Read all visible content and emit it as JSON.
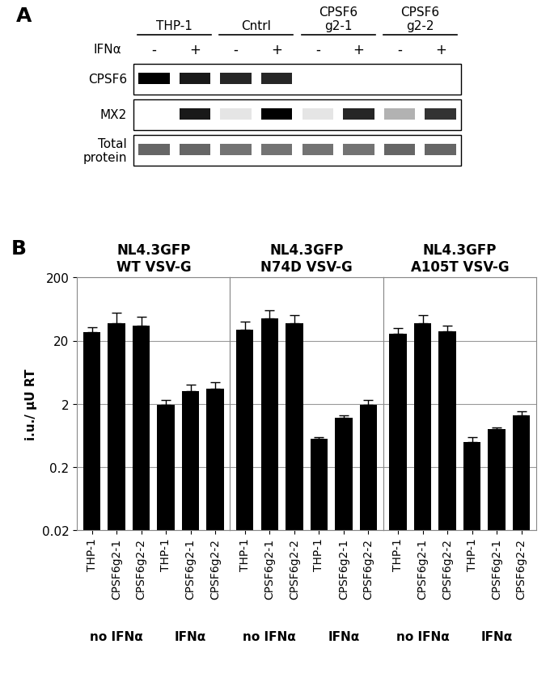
{
  "panel_labels": [
    "A",
    "B"
  ],
  "blot": {
    "treatment_label": "IFNα",
    "lane_groups": [
      "THP-1",
      "Cntrl",
      "CPSF6\ng2-1",
      "CPSF6\ng2-2"
    ],
    "lane_signs": [
      "-",
      "+",
      "-",
      "+",
      "-",
      "+",
      "-",
      "+"
    ],
    "rows": [
      {
        "label": "CPSF6",
        "signal": [
          1.0,
          0.9,
          0.85,
          0.85,
          0.0,
          0.0,
          0.0,
          0.0
        ]
      },
      {
        "label": "MX2",
        "signal": [
          0.0,
          0.9,
          0.1,
          1.0,
          0.1,
          0.85,
          0.3,
          0.8
        ]
      },
      {
        "label": "Total\nprotein",
        "signal": [
          0.6,
          0.6,
          0.55,
          0.55,
          0.55,
          0.55,
          0.6,
          0.6
        ]
      }
    ]
  },
  "chart_data": [
    {
      "type": "bar",
      "title": "NL4.3GFP\nWT VSV-G",
      "y_label": "i.u./ µU RT",
      "categories": [
        "THP-1",
        "CPSF6g2-1",
        "CPSF6g2-2",
        "THP-1",
        "CPSF6g2-1",
        "CPSF6g2-2"
      ],
      "group_labels": [
        "no IFNα",
        "IFNα"
      ],
      "values": [
        27,
        38,
        35,
        1.9,
        3.2,
        3.5
      ],
      "error": [
        6,
        17,
        13,
        0.4,
        0.8,
        0.9
      ],
      "color": "#000000",
      "log": "y",
      "grid": true,
      "ylim": [
        0.02,
        200
      ],
      "yticks": [
        0.02,
        0.2,
        2,
        20,
        200
      ]
    },
    {
      "type": "bar",
      "title": "NL4.3GFP\nN74D VSV-G",
      "categories": [
        "THP-1",
        "CPSF6g2-1",
        "CPSF6g2-2",
        "THP-1",
        "CPSF6g2-1",
        "CPSF6g2-2"
      ],
      "group_labels": [
        "no IFNα",
        "IFNα"
      ],
      "values": [
        30,
        45,
        38,
        0.55,
        1.2,
        1.9
      ],
      "error": [
        10,
        15,
        12,
        0.05,
        0.1,
        0.4
      ],
      "color": "#000000",
      "log": "y",
      "grid": true,
      "tick_labels": "x",
      "ylim": [
        0.02,
        200
      ],
      "yticks": [
        0.02,
        0.2,
        2,
        20,
        200
      ]
    },
    {
      "type": "bar",
      "title": "NL4.3GFP\nA105T VSV-G",
      "categories": [
        "THP-1",
        "CPSF6g2-1",
        "CPSF6g2-2",
        "THP-1",
        "CPSF6g2-1",
        "CPSF6g2-2"
      ],
      "group_labels": [
        "no IFNα",
        "IFNα"
      ],
      "values": [
        26,
        38,
        28,
        0.5,
        0.8,
        1.3
      ],
      "error": [
        6,
        12,
        6,
        0.1,
        0.05,
        0.2
      ],
      "color": "#000000",
      "log": "y",
      "grid": true,
      "tick_labels": "x",
      "ylim": [
        0.02,
        200
      ],
      "yticks": [
        0.02,
        0.2,
        2,
        20,
        200
      ]
    }
  ]
}
